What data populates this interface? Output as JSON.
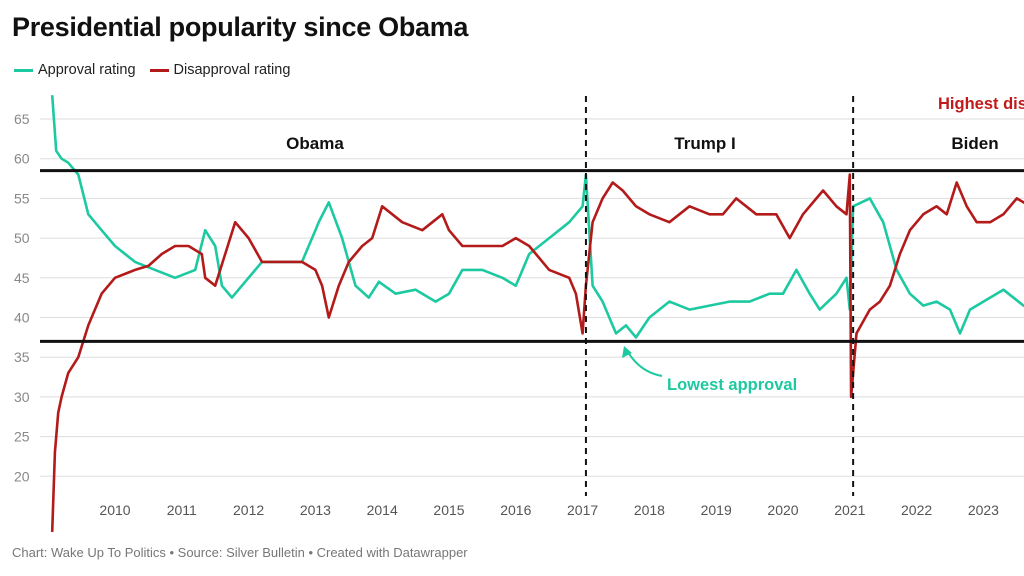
{
  "title": "Presidential popularity since Obama",
  "footer": "Chart: Wake Up To Politics • Source: Silver Bulletin • Created with Datawrapper",
  "colors": {
    "approval": "#1dc9a0",
    "disapproval": "#b31b1b",
    "grid": "#dddddd",
    "axis_text": "#888888",
    "annotation_approval": "#1dc9a0",
    "annotation_disapproval": "#c01a1a"
  },
  "chart_data": {
    "type": "line",
    "title": "Presidential popularity since Obama",
    "xlabel": "",
    "ylabel": "",
    "ylim": [
      15,
      68
    ],
    "xlim": [
      2009.06,
      2023.9
    ],
    "y_ticks": [
      20,
      25,
      30,
      35,
      40,
      45,
      50,
      55,
      60,
      65
    ],
    "x_ticks": [
      2010,
      2011,
      2012,
      2013,
      2014,
      2015,
      2016,
      2017,
      2018,
      2019,
      2020,
      2021,
      2022,
      2023
    ],
    "grid": true,
    "legend": "top-left",
    "series": [
      {
        "name": "Approval rating",
        "x": [
          2009.06,
          2009.12,
          2009.2,
          2009.3,
          2009.45,
          2009.6,
          2009.8,
          2010.0,
          2010.3,
          2010.6,
          2010.9,
          2011.2,
          2011.35,
          2011.5,
          2011.6,
          2011.75,
          2011.9,
          2012.2,
          2012.5,
          2012.8,
          2013.0,
          2013.05,
          2013.2,
          2013.4,
          2013.6,
          2013.8,
          2013.95,
          2014.2,
          2014.5,
          2014.8,
          2015.0,
          2015.2,
          2015.5,
          2015.8,
          2016.0,
          2016.2,
          2016.5,
          2016.8,
          2017.0,
          2017.05,
          2017.15,
          2017.3,
          2017.5,
          2017.65,
          2017.8,
          2018.0,
          2018.3,
          2018.6,
          2018.9,
          2019.2,
          2019.5,
          2019.8,
          2020.0,
          2020.2,
          2020.4,
          2020.55,
          2020.8,
          2020.95,
          2021.0,
          2021.05,
          2021.3,
          2021.5,
          2021.6,
          2021.7,
          2021.9,
          2022.1,
          2022.3,
          2022.5,
          2022.65,
          2022.8,
          2023.0,
          2023.3,
          2023.6,
          2023.9
        ],
        "values": [
          68,
          61,
          60,
          59.5,
          58,
          53,
          51,
          49,
          47,
          46,
          45,
          46,
          51,
          49,
          44,
          42.5,
          44,
          47,
          47,
          47,
          51,
          52,
          54.5,
          50,
          44,
          42.5,
          44.5,
          43,
          43.5,
          42,
          43,
          46,
          46,
          45,
          44,
          48,
          50,
          52,
          54,
          58,
          44,
          42,
          38,
          39,
          37.5,
          40,
          42,
          41,
          41.5,
          42,
          42,
          43,
          43,
          46,
          43,
          41,
          43,
          45,
          41,
          54,
          55,
          52,
          49,
          46,
          43,
          41.5,
          42,
          41,
          38,
          41,
          42,
          43.5,
          41.5,
          40.5
        ]
      },
      {
        "name": "Disapproval rating",
        "x": [
          2009.06,
          2009.1,
          2009.15,
          2009.2,
          2009.3,
          2009.45,
          2009.6,
          2009.8,
          2010.0,
          2010.3,
          2010.5,
          2010.7,
          2010.9,
          2011.1,
          2011.3,
          2011.35,
          2011.5,
          2011.65,
          2011.8,
          2012.0,
          2012.2,
          2012.5,
          2012.8,
          2013.0,
          2013.1,
          2013.2,
          2013.35,
          2013.5,
          2013.7,
          2013.85,
          2014.0,
          2014.3,
          2014.6,
          2014.9,
          2015.0,
          2015.2,
          2015.5,
          2015.8,
          2016.0,
          2016.2,
          2016.5,
          2016.8,
          2016.9,
          2017.0,
          2017.05,
          2017.15,
          2017.3,
          2017.45,
          2017.6,
          2017.8,
          2018.0,
          2018.3,
          2018.6,
          2018.9,
          2019.1,
          2019.3,
          2019.6,
          2019.9,
          2020.1,
          2020.3,
          2020.5,
          2020.6,
          2020.8,
          2020.95,
          2021.0,
          2021.02,
          2021.1,
          2021.3,
          2021.45,
          2021.6,
          2021.75,
          2021.9,
          2022.1,
          2022.3,
          2022.45,
          2022.6,
          2022.75,
          2022.9,
          2023.1,
          2023.3,
          2023.5,
          2023.7,
          2023.9
        ],
        "values": [
          13,
          23,
          28,
          30,
          33,
          35,
          39,
          43,
          45,
          46,
          46.5,
          48,
          49,
          49,
          48,
          45,
          44,
          48,
          52,
          50,
          47,
          47,
          47,
          46,
          44,
          40,
          44,
          47,
          49,
          50,
          54,
          52,
          51,
          53,
          51,
          49,
          49,
          49,
          50,
          49,
          46,
          45,
          43,
          38,
          44,
          52,
          55,
          57,
          56,
          54,
          53,
          52,
          54,
          53,
          53,
          55,
          53,
          53,
          50,
          53,
          55,
          56,
          54,
          53,
          58,
          30,
          38,
          41,
          42,
          44,
          48,
          51,
          53,
          54,
          53,
          57,
          54,
          52,
          52,
          53,
          55,
          54,
          53
        ]
      }
    ],
    "president_eras": [
      {
        "name": "Obama",
        "start": 2009.06,
        "end": 2017.05
      },
      {
        "name": "Trump I",
        "start": 2017.05,
        "end": 2021.05
      },
      {
        "name": "Biden",
        "start": 2021.05,
        "end": 2023.9
      }
    ],
    "dividers": [
      2017.05,
      2021.05
    ],
    "reference_lines": [
      58.5,
      37
    ],
    "annotations": [
      {
        "text": "Lowest approval",
        "series": "Approval rating",
        "x": 2017.65,
        "y": 37.5
      },
      {
        "text": "Highest dis",
        "series": "Disapproval rating"
      }
    ]
  }
}
